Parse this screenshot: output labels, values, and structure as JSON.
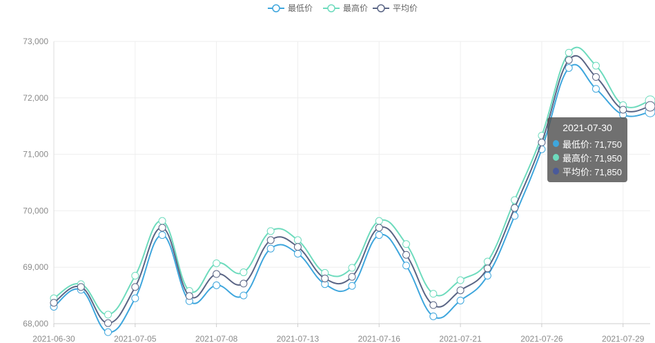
{
  "chart_data": {
    "type": "line",
    "title": "",
    "xlabel": "",
    "ylabel": "",
    "ylim": [
      68000,
      73000
    ],
    "yticks": [
      68000,
      69000,
      70000,
      71000,
      72000,
      73000
    ],
    "ytick_labels": [
      "68,000",
      "69,000",
      "70,000",
      "71,000",
      "72,000",
      "73,000"
    ],
    "x": [
      "2021-06-30",
      "2021-07-01",
      "2021-07-02",
      "2021-07-05",
      "2021-07-06",
      "2021-07-07",
      "2021-07-08",
      "2021-07-09",
      "2021-07-12",
      "2021-07-13",
      "2021-07-14",
      "2021-07-15",
      "2021-07-16",
      "2021-07-19",
      "2021-07-20",
      "2021-07-21",
      "2021-07-22",
      "2021-07-23",
      "2021-07-26",
      "2021-07-27",
      "2021-07-28",
      "2021-07-29",
      "2021-07-30"
    ],
    "xtick_labels": [
      "2021-06-30",
      "2021-07-05",
      "2021-07-08",
      "2021-07-13",
      "2021-07-16",
      "2021-07-21",
      "2021-07-26",
      "2021-07-29"
    ],
    "grid": true,
    "legend_position": "top-center",
    "series": [
      {
        "name": "最低价",
        "color": "#3ea6dd",
        "values": [
          68300,
          68600,
          67850,
          68450,
          69570,
          68400,
          68680,
          68500,
          69330,
          69240,
          68700,
          68670,
          69570,
          69030,
          68130,
          68410,
          68850,
          69910,
          71090,
          72530,
          72160,
          71700,
          71750
        ]
      },
      {
        "name": "最高价",
        "color": "#6ddbbd",
        "values": [
          68450,
          68700,
          68160,
          68850,
          69820,
          68580,
          69070,
          68910,
          69640,
          69480,
          68900,
          68990,
          69820,
          69410,
          68530,
          68770,
          69100,
          70190,
          71330,
          72800,
          72570,
          71870,
          71950
        ]
      },
      {
        "name": "平均价",
        "color": "#5a6585",
        "values": [
          68370,
          68650,
          68010,
          68650,
          69700,
          68490,
          68880,
          68710,
          69480,
          69360,
          68800,
          68830,
          69700,
          69220,
          68330,
          68590,
          68980,
          70050,
          71210,
          72670,
          72370,
          71790,
          71850
        ]
      }
    ]
  },
  "tooltip": {
    "date": "2021-07-30",
    "rows": [
      {
        "label": "最低价: 71,750",
        "color": "#3ea6dd"
      },
      {
        "label": "最高价: 71,950",
        "color": "#6ddbbd"
      },
      {
        "label": "平均价: 71,850",
        "color": "#4a5a9a"
      }
    ]
  }
}
